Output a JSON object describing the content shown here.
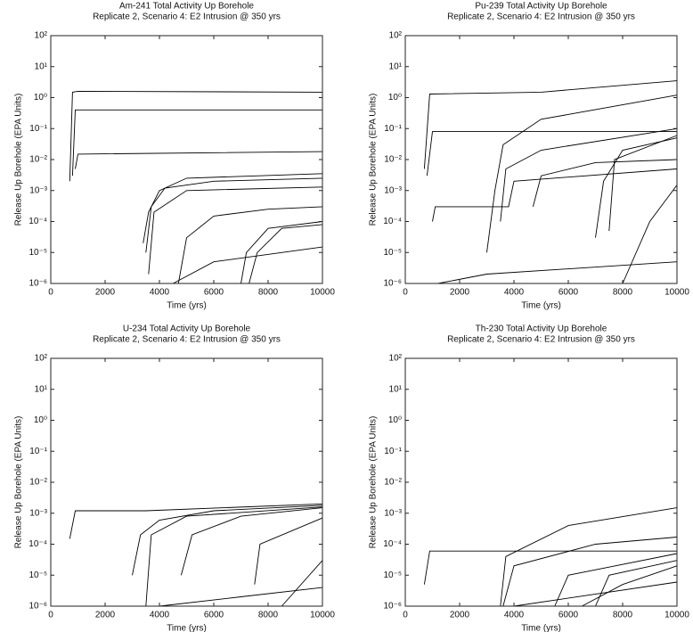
{
  "chart_data": [
    {
      "type": "line",
      "log_y": true,
      "title": "Am-241 Total Activity Up Borehole",
      "subtitle": "Replicate 2, Scenario 4: E2 Intrusion @ 350 yrs",
      "x_label": "Time (yrs)",
      "y_label": "Release Up Borehole (EPA Units)",
      "xlim": [
        0,
        10000
      ],
      "xticks": [
        0,
        2000,
        4000,
        6000,
        8000,
        10000
      ],
      "ylim": [
        1e-06,
        100
      ],
      "yticks": [
        {
          "value": 1e-06,
          "label": "10⁻⁶"
        },
        {
          "value": 1e-05,
          "label": "10⁻⁵"
        },
        {
          "value": 0.0001,
          "label": "10⁻⁴"
        },
        {
          "value": 0.001,
          "label": "10⁻³"
        },
        {
          "value": 0.01,
          "label": "10⁻²"
        },
        {
          "value": 0.1,
          "label": "10⁻¹"
        },
        {
          "value": 1,
          "label": "10⁰"
        },
        {
          "value": 10,
          "label": "10¹"
        },
        {
          "value": 100,
          "label": "10²"
        }
      ],
      "series": [
        {
          "color": "#000",
          "x": [
            700,
            800,
            1000,
            10000
          ],
          "values": [
            0.002,
            1.5,
            1.6,
            1.5
          ]
        },
        {
          "color": "#000",
          "x": [
            800,
            900,
            10000
          ],
          "values": [
            0.003,
            0.4,
            0.4
          ]
        },
        {
          "color": "#000",
          "x": [
            900,
            1000,
            10000
          ],
          "values": [
            0.005,
            0.015,
            0.018
          ]
        },
        {
          "color": "#000",
          "x": [
            3400,
            3600,
            4000,
            5000,
            10000
          ],
          "values": [
            2e-05,
            0.0002,
            0.001,
            0.0025,
            0.0035
          ]
        },
        {
          "color": "#000",
          "x": [
            3500,
            3700,
            4200,
            6000,
            10000
          ],
          "values": [
            1e-05,
            0.0003,
            0.0012,
            0.002,
            0.0025
          ]
        },
        {
          "color": "#000",
          "x": [
            3600,
            3800,
            5000,
            10000
          ],
          "values": [
            2e-06,
            0.0002,
            0.001,
            0.0013
          ]
        },
        {
          "color": "#000",
          "x": [
            4700,
            5000,
            6000,
            8000,
            10000
          ],
          "values": [
            1e-06,
            3e-05,
            0.00015,
            0.00025,
            0.0003
          ]
        },
        {
          "color": "#000",
          "x": [
            7000,
            7200,
            8000,
            10000
          ],
          "values": [
            1e-06,
            1e-05,
            6e-05,
            0.0001
          ]
        },
        {
          "color": "#000",
          "x": [
            7300,
            7600,
            8500,
            10000
          ],
          "values": [
            1e-06,
            1e-05,
            6e-05,
            8e-05
          ]
        },
        {
          "color": "#000",
          "x": [
            4500,
            6000,
            10000
          ],
          "values": [
            1e-06,
            5e-06,
            1.5e-05
          ]
        }
      ]
    },
    {
      "type": "line",
      "log_y": true,
      "title": "Pu-239 Total Activity Up Borehole",
      "subtitle": "Replicate 2, Scenario 4: E2 Intrusion @ 350 yrs",
      "x_label": "Time (yrs)",
      "y_label": "Release Up Borehole (EPA Units)",
      "xlim": [
        0,
        10000
      ],
      "xticks": [
        0,
        2000,
        4000,
        6000,
        8000,
        10000
      ],
      "ylim": [
        1e-06,
        100
      ],
      "yticks": [
        {
          "value": 1e-06,
          "label": "10⁻⁶"
        },
        {
          "value": 1e-05,
          "label": "10⁻⁵"
        },
        {
          "value": 0.0001,
          "label": "10⁻⁴"
        },
        {
          "value": 0.001,
          "label": "10⁻³"
        },
        {
          "value": 0.01,
          "label": "10⁻²"
        },
        {
          "value": 0.1,
          "label": "10⁻¹"
        },
        {
          "value": 1,
          "label": "10⁰"
        },
        {
          "value": 10,
          "label": "10¹"
        },
        {
          "value": 100,
          "label": "10²"
        }
      ],
      "series": [
        {
          "color": "#000",
          "x": [
            700,
            900,
            5000,
            10000
          ],
          "values": [
            0.005,
            1.3,
            1.5,
            3.5
          ]
        },
        {
          "color": "#000",
          "x": [
            800,
            1000,
            10000
          ],
          "values": [
            0.003,
            0.08,
            0.08
          ]
        },
        {
          "color": "#000",
          "x": [
            1000,
            1100,
            3800,
            4000,
            10000
          ],
          "values": [
            0.0001,
            0.0003,
            0.0003,
            0.002,
            0.005
          ]
        },
        {
          "color": "#000",
          "x": [
            3000,
            3300,
            3600,
            5000,
            10000
          ],
          "values": [
            1e-05,
            0.001,
            0.03,
            0.2,
            1.2
          ]
        },
        {
          "color": "#000",
          "x": [
            3500,
            3700,
            5000,
            10000
          ],
          "values": [
            0.0001,
            0.005,
            0.02,
            0.1
          ]
        },
        {
          "color": "#000",
          "x": [
            4700,
            5000,
            7000,
            10000
          ],
          "values": [
            0.0003,
            0.003,
            0.008,
            0.01
          ]
        },
        {
          "color": "#000",
          "x": [
            7000,
            7300,
            8000,
            10000
          ],
          "values": [
            3e-05,
            0.002,
            0.02,
            0.05
          ]
        },
        {
          "color": "#000",
          "x": [
            7500,
            7700,
            10000
          ],
          "values": [
            5e-05,
            0.01,
            0.06
          ]
        },
        {
          "color": "#000",
          "x": [
            1200,
            3000,
            10000
          ],
          "values": [
            1e-06,
            2e-06,
            5e-06
          ]
        },
        {
          "color": "#000",
          "x": [
            8000,
            9000,
            10000
          ],
          "values": [
            1e-06,
            0.0001,
            0.0015
          ]
        }
      ]
    },
    {
      "type": "line",
      "log_y": true,
      "title": "U-234 Total Activity Up Borehole",
      "subtitle": "Replicate 2, Scenario 4: E2 Intrusion @ 350 yrs",
      "x_label": "Time (yrs)",
      "y_label": "Release Up Borehole (EPA Units)",
      "xlim": [
        0,
        10000
      ],
      "xticks": [
        0,
        2000,
        4000,
        6000,
        8000,
        10000
      ],
      "ylim": [
        1e-06,
        100
      ],
      "yticks": [
        {
          "value": 1e-06,
          "label": "10⁻⁶"
        },
        {
          "value": 1e-05,
          "label": "10⁻⁵"
        },
        {
          "value": 0.0001,
          "label": "10⁻⁴"
        },
        {
          "value": 0.001,
          "label": "10⁻³"
        },
        {
          "value": 0.01,
          "label": "10⁻²"
        },
        {
          "value": 0.1,
          "label": "10⁻¹"
        },
        {
          "value": 1,
          "label": "10⁰"
        },
        {
          "value": 10,
          "label": "10¹"
        },
        {
          "value": 100,
          "label": "10²"
        }
      ],
      "series": [
        {
          "color": "#000",
          "x": [
            700,
            900,
            3500,
            10000
          ],
          "values": [
            0.00015,
            0.0012,
            0.0012,
            0.002
          ]
        },
        {
          "color": "#000",
          "x": [
            3000,
            3300,
            4000,
            6000,
            10000
          ],
          "values": [
            1e-05,
            0.0002,
            0.0006,
            0.0012,
            0.0018
          ]
        },
        {
          "color": "#000",
          "x": [
            3500,
            3700,
            5000,
            10000
          ],
          "values": [
            1e-06,
            0.0002,
            0.0008,
            0.0016
          ]
        },
        {
          "color": "#000",
          "x": [
            4800,
            5200,
            7000,
            10000
          ],
          "values": [
            1e-05,
            0.0002,
            0.0008,
            0.0015
          ]
        },
        {
          "color": "#000",
          "x": [
            7500,
            7700,
            10000
          ],
          "values": [
            5e-06,
            0.0001,
            0.0007
          ]
        },
        {
          "color": "#000",
          "x": [
            4000,
            7000,
            10000
          ],
          "values": [
            1e-06,
            2e-06,
            4e-06
          ]
        },
        {
          "color": "#000",
          "x": [
            8500,
            10000
          ],
          "values": [
            1e-06,
            3e-05
          ]
        }
      ]
    },
    {
      "type": "line",
      "log_y": true,
      "title": "Th-230 Total Activity Up Borehole",
      "subtitle": "Replicate 2, Scenario 4: E2 Intrusion @ 350 yrs",
      "x_label": "Time (yrs)",
      "y_label": "Release Up Borehole (EPA Units)",
      "xlim": [
        0,
        10000
      ],
      "xticks": [
        0,
        2000,
        4000,
        6000,
        8000,
        10000
      ],
      "ylim": [
        1e-06,
        100
      ],
      "yticks": [
        {
          "value": 1e-06,
          "label": "10⁻⁶"
        },
        {
          "value": 1e-05,
          "label": "10⁻⁵"
        },
        {
          "value": 0.0001,
          "label": "10⁻⁴"
        },
        {
          "value": 0.001,
          "label": "10⁻³"
        },
        {
          "value": 0.01,
          "label": "10⁻²"
        },
        {
          "value": 0.1,
          "label": "10⁻¹"
        },
        {
          "value": 1,
          "label": "10⁰"
        },
        {
          "value": 10,
          "label": "10¹"
        },
        {
          "value": 100,
          "label": "10²"
        }
      ],
      "series": [
        {
          "color": "#000",
          "x": [
            700,
            900,
            10000
          ],
          "values": [
            5e-06,
            6e-05,
            6e-05
          ]
        },
        {
          "color": "#000",
          "x": [
            3500,
            3700,
            6000,
            10000
          ],
          "values": [
            1e-06,
            4e-05,
            0.0004,
            0.0015
          ]
        },
        {
          "color": "#000",
          "x": [
            3600,
            4000,
            7000,
            10000
          ],
          "values": [
            1e-06,
            2e-05,
            0.0001,
            0.00017
          ]
        },
        {
          "color": "#000",
          "x": [
            5500,
            6000,
            10000
          ],
          "values": [
            1e-06,
            1e-05,
            5e-05
          ]
        },
        {
          "color": "#000",
          "x": [
            7000,
            7500,
            10000
          ],
          "values": [
            1e-06,
            1e-05,
            3e-05
          ]
        },
        {
          "color": "#000",
          "x": [
            4000,
            10000
          ],
          "values": [
            1e-06,
            6e-06
          ]
        },
        {
          "color": "#000",
          "x": [
            6500,
            8000,
            10000
          ],
          "values": [
            1e-06,
            5e-06,
            2e-05
          ]
        }
      ]
    }
  ]
}
